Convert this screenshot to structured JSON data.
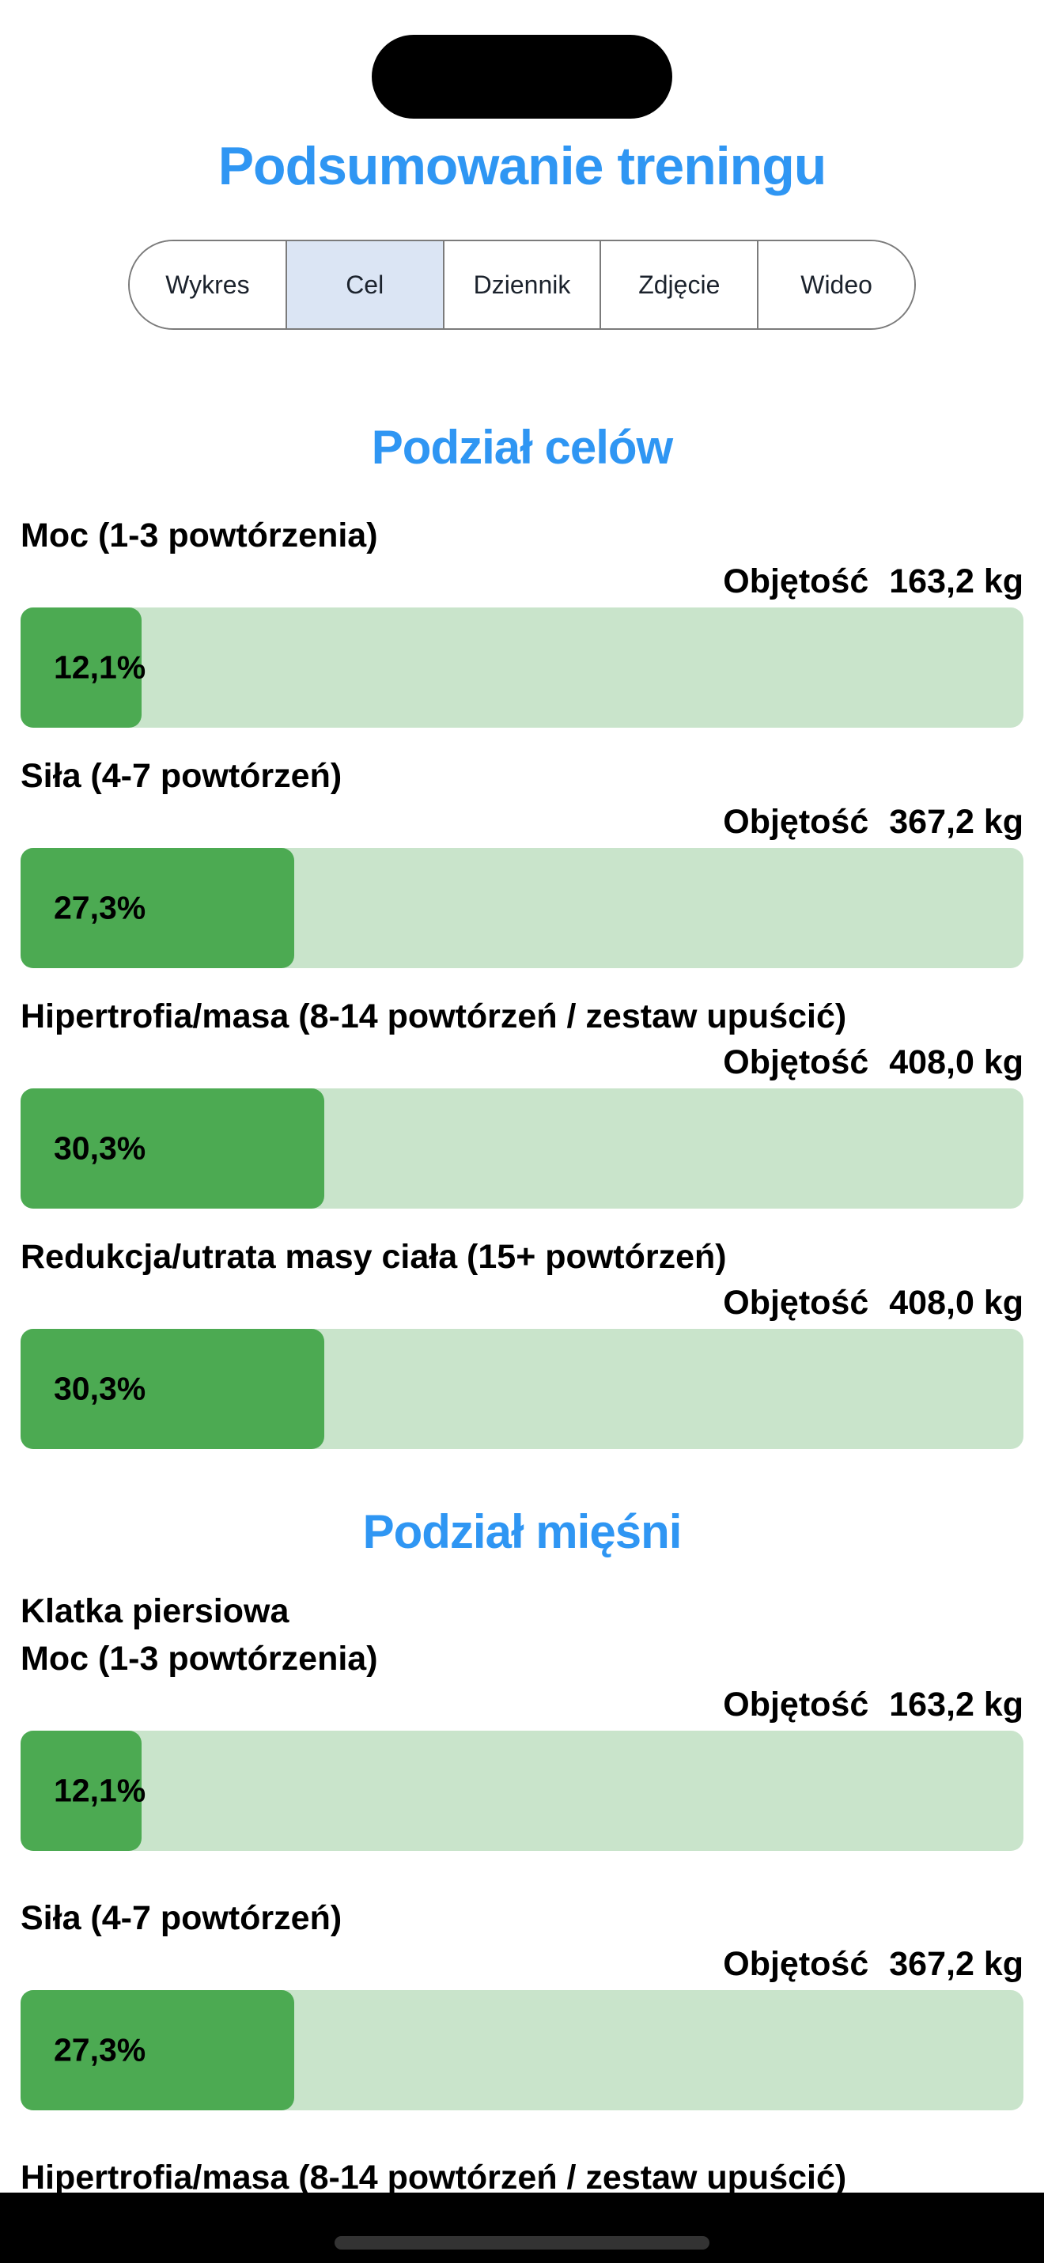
{
  "header": {
    "title": "Podsumowanie treningu"
  },
  "tabs": [
    {
      "label": "Wykres",
      "selected": false
    },
    {
      "label": "Cel",
      "selected": true
    },
    {
      "label": "Dziennik",
      "selected": false
    },
    {
      "label": "Zdjęcie",
      "selected": false
    },
    {
      "label": "Wideo",
      "selected": false
    }
  ],
  "volume_label": "Objętość",
  "sections": [
    {
      "heading": "Podział celów",
      "rows": [
        {
          "label": "Moc (1-3 powtórzenia)",
          "volume": "163,2 kg",
          "percent": "12,1%",
          "percent_value": 12.1
        },
        {
          "label": "Siła (4-7 powtórzeń)",
          "volume": "367,2 kg",
          "percent": "27,3%",
          "percent_value": 27.3
        },
        {
          "label": "Hipertrofia/masa (8-14 powtórzeń / zestaw upuścić)",
          "volume": "408,0 kg",
          "percent": "30,3%",
          "percent_value": 30.3
        },
        {
          "label": "Redukcja/utrata masy ciała (15+ powtórzeń)",
          "volume": "408,0 kg",
          "percent": "30,3%",
          "percent_value": 30.3
        }
      ]
    },
    {
      "heading": "Podział mięśni",
      "subheading": "Klatka piersiowa",
      "rows": [
        {
          "label": "Moc (1-3 powtórzenia)",
          "volume": "163,2 kg",
          "percent": "12,1%",
          "percent_value": 12.1
        },
        {
          "label": "Siła (4-7 powtórzeń)",
          "volume": "367,2 kg",
          "percent": "27,3%",
          "percent_value": 27.3
        },
        {
          "label": "Hipertrofia/masa (8-14 powtórzeń / zestaw upuścić)",
          "volume": null,
          "percent": null,
          "percent_value": null
        }
      ]
    }
  ],
  "colors": {
    "accent": "#2F96F3",
    "barFill": "#4CAA52",
    "barTrack": "#C9E4CB",
    "tabSelectedBg": "#DBE5F4",
    "tabBorder": "#7B7B7B",
    "homeIndicator": "#333333"
  },
  "chart_data": [
    {
      "type": "bar",
      "title": "Podział celów",
      "categories": [
        "Moc (1-3 powtórzenia)",
        "Siła (4-7 powtórzeń)",
        "Hipertrofia/masa (8-14 powtórzeń / zestaw upuścić)",
        "Redukcja/utrata masy ciała (15+ powtórzeń)"
      ],
      "values": [
        12.1,
        27.3,
        30.3,
        30.3
      ],
      "unit": "%",
      "volumes": [
        "163,2 kg",
        "367,2 kg",
        "408,0 kg",
        "408,0 kg"
      ],
      "xlabel": "",
      "ylabel": "Objętość",
      "xlim": [
        0,
        100
      ],
      "orientation": "horizontal",
      "grid": false,
      "legend": "none"
    },
    {
      "type": "bar",
      "title": "Podział mięśni — Klatka piersiowa",
      "categories": [
        "Moc (1-3 powtórzenia)",
        "Siła (4-7 powtórzeń)",
        "Hipertrofia/masa (8-14 powtórzeń / zestaw upuścić)"
      ],
      "values": [
        12.1,
        27.3,
        null
      ],
      "unit": "%",
      "volumes": [
        "163,2 kg",
        "367,2 kg",
        null
      ],
      "xlabel": "",
      "ylabel": "Objętość",
      "xlim": [
        0,
        100
      ],
      "orientation": "horizontal",
      "grid": false,
      "legend": "none",
      "note": "third row truncated at bottom of screen"
    }
  ]
}
